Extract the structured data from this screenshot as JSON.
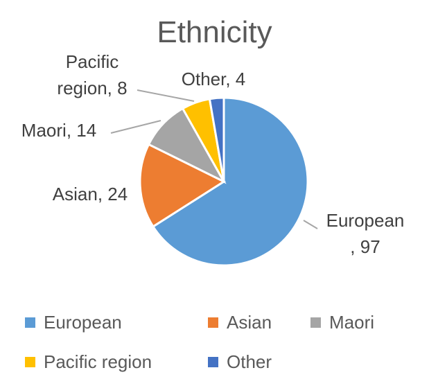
{
  "chart_data": {
    "type": "pie",
    "title": "Ethnicity",
    "categories": [
      "European",
      "Asian",
      "Maori",
      "Pacific region",
      "Other"
    ],
    "values": [
      97,
      24,
      14,
      8,
      4
    ],
    "value_labels": [
      "European\n, 97",
      "Asian, 24",
      "Maori, 14",
      "Pacific\nregion, 8",
      "Other, 4"
    ],
    "colors": [
      "#5b9bd5",
      "#ed7d31",
      "#a5a5a5",
      "#ffc000",
      "#4472c4"
    ],
    "legend": "bottom"
  }
}
